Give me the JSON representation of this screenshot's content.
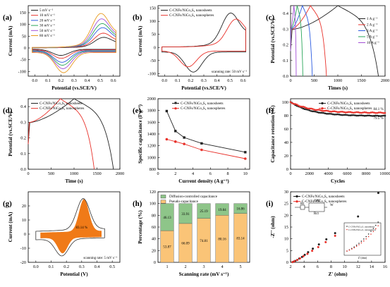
{
  "chart_data": [
    {
      "panel": "(a)",
      "type": "line",
      "xlabel": "Potential (vs.SCE/V)",
      "ylabel": "Current (mA)",
      "xlim": [
        -0.05,
        0.65
      ],
      "ylim": [
        -120,
        180
      ],
      "xticks": [
        "0.0",
        "0.1",
        "0.2",
        "0.3",
        "0.4",
        "0.5",
        "0.6"
      ],
      "yticks": [
        "-100",
        "-50",
        "0",
        "50",
        "100",
        "150"
      ],
      "legend": "top-left",
      "series": [
        {
          "name": "5 mV s⁻¹",
          "color": "#222222",
          "scale": 0.3
        },
        {
          "name": "10 mV s⁻¹",
          "color": "#e8312a",
          "scale": 0.42
        },
        {
          "name": "20 mV s⁻¹",
          "color": "#2b5be0",
          "scale": 0.58
        },
        {
          "name": "30 mV s⁻¹",
          "color": "#2aa65a",
          "scale": 0.7
        },
        {
          "name": "50 mV s⁻¹",
          "color": "#a34fd6",
          "scale": 0.84
        },
        {
          "name": "80 mV s⁻¹",
          "color": "#e89a1e",
          "scale": 1.0
        }
      ]
    },
    {
      "panel": "(b)",
      "type": "line",
      "xlabel": "Potential (vs.SCE/V)",
      "ylabel": "Current (mA)",
      "xlim": [
        -0.05,
        0.65
      ],
      "ylim": [
        -110,
        160
      ],
      "xticks": [
        "0.0",
        "0.1",
        "0.2",
        "0.3",
        "0.4",
        "0.5",
        "0.6"
      ],
      "yticks": [
        "-100",
        "-50",
        "0",
        "50",
        "100",
        "150"
      ],
      "annotation": "scanning rate: 50 mV s⁻¹",
      "legend": "top-left",
      "series": [
        {
          "name": "C-CNFs/NiCo₂S₄ nanosheets",
          "color": "#222222"
        },
        {
          "name": "C-CNFs/NiCo₂S₄ nanospheres",
          "color": "#e8312a"
        }
      ]
    },
    {
      "panel": "(c)",
      "type": "line",
      "xlabel": "Times (s)",
      "ylabel": "Potential (vs.SCE/V)",
      "xlim": [
        0,
        2000
      ],
      "ylim": [
        0,
        0.45
      ],
      "xticks": [
        "0",
        "500",
        "1000",
        "1500",
        "2000"
      ],
      "yticks": [
        "0.0",
        "0.1",
        "0.2",
        "0.3",
        "0.4"
      ],
      "legend": "right",
      "series": [
        {
          "name": "1  A g⁻¹",
          "color": "#222222",
          "tc": 1000,
          "td": 1860
        },
        {
          "name": "2  A g⁻¹",
          "color": "#e8312a",
          "tc": 420,
          "td": 760
        },
        {
          "name": "3  A g⁻¹",
          "color": "#2b5be0",
          "tc": 250,
          "td": 460
        },
        {
          "name": "5  A g⁻¹",
          "color": "#2aa65a",
          "tc": 140,
          "td": 260
        },
        {
          "name": "10  A g⁻¹",
          "color": "#a34fd6",
          "tc": 70,
          "td": 120
        }
      ]
    },
    {
      "panel": "(d)",
      "type": "line",
      "xlabel": "Time (s)",
      "ylabel": "Potential (vs.SCE/V)",
      "xlim": [
        0,
        2000
      ],
      "ylim": [
        0,
        0.45
      ],
      "xticks": [
        "0",
        "500",
        "1000",
        "1500",
        "2000"
      ],
      "yticks": [
        "0.0",
        "0.1",
        "0.2",
        "0.3",
        "0.4"
      ],
      "legend": "top-left",
      "series": [
        {
          "name": "C-CNFs/NiCo₂S₄ nanosheets",
          "color": "#222222",
          "tc": 1000,
          "td": 1860
        },
        {
          "name": "C-CNFs/NiCo₂S₄ nanospheres",
          "color": "#e8312a",
          "tc": 700,
          "td": 1440
        }
      ]
    },
    {
      "panel": "(e)",
      "type": "line",
      "xlabel": "Current density (A g⁻¹)",
      "ylabel": "Specific capacitance (F g⁻¹)",
      "xlim": [
        0,
        10.5
      ],
      "ylim": [
        800,
        2000
      ],
      "xticks": [
        "0",
        "2",
        "4",
        "6",
        "8",
        "10"
      ],
      "yticks": [
        "800",
        "1000",
        "1200",
        "1400",
        "1600",
        "1800",
        "2000"
      ],
      "legend": "top-right",
      "x": [
        1,
        2,
        3,
        5,
        10
      ],
      "series": [
        {
          "name": "C-CNFs/NiCo₂S₄ nanosheets",
          "color": "#222222",
          "marker": "square",
          "values": [
            1790,
            1450,
            1340,
            1240,
            1090
          ]
        },
        {
          "name": "C-CNFs/NiCo₂S₄ nanospheres",
          "color": "#e8312a",
          "marker": "circle",
          "values": [
            1310,
            1270,
            1230,
            1130,
            980
          ]
        }
      ]
    },
    {
      "panel": "(f)",
      "type": "line",
      "xlabel": "Cycles",
      "ylabel": "Capacitance retention (%)",
      "xlim": [
        0,
        10000
      ],
      "ylim": [
        0,
        105
      ],
      "xticks": [
        "0",
        "2000",
        "4000",
        "6000",
        "8000",
        "10000"
      ],
      "yticks": [
        "0",
        "20",
        "40",
        "60",
        "80",
        "100"
      ],
      "legend": "top-right",
      "annotations": [
        "84.1 %",
        "79.5 %"
      ],
      "series": [
        {
          "name": "C-CNFs/NiCo₂S₄ nanosheets",
          "color": "#222222",
          "final": 79.5
        },
        {
          "name": "C-CNFs/NiCo₂S₄ nanospheres",
          "color": "#e8312a",
          "final": 84.1
        }
      ]
    },
    {
      "panel": "(g)",
      "type": "area",
      "xlabel": "Potential (V)",
      "ylabel": "Current (mA)",
      "xlim": [
        -0.05,
        0.55
      ],
      "ylim": [
        -20,
        30
      ],
      "xticks": [
        "0.0",
        "0.1",
        "0.2",
        "0.3",
        "0.4",
        "0.5"
      ],
      "yticks": [
        "-20",
        "-10",
        "0",
        "10",
        "20"
      ],
      "annotations": [
        "83.14 %",
        "scanning rate: 5 mV s⁻¹"
      ],
      "colors": {
        "fill": "#f07a18",
        "outline": "#333333"
      }
    },
    {
      "panel": "(h)",
      "type": "bar",
      "xlabel": "Scanning rate (mV s⁻¹)",
      "ylabel": "Percentage (%)",
      "categories": [
        "1",
        "2",
        "3",
        "4",
        "5"
      ],
      "ylim": [
        0,
        120
      ],
      "yticks": [
        "0",
        "20",
        "40",
        "60",
        "80",
        "100",
        "120"
      ],
      "legend": "top-left",
      "series": [
        {
          "name": "Pseudo-capacitance",
          "color": "#fac477",
          "values": [
            53.87,
            66.09,
            74.81,
            80.16,
            83.14
          ],
          "labels": [
            "53.87",
            "66.09",
            "74.81",
            "80.16",
            "83.14"
          ]
        },
        {
          "name": "Diffusion-controlled capacitance",
          "color": "#8ec589",
          "values": [
            46.13,
            33.91,
            25.19,
            19.84,
            16.86
          ],
          "labels": [
            "46.13",
            "33.91",
            "25.19",
            "19.84",
            "16.86"
          ]
        }
      ]
    },
    {
      "panel": "(i)",
      "type": "scatter",
      "xlabel": "Z' (ohm)",
      "ylabel": "-Z'' (ohm)",
      "xlim": [
        2,
        16
      ],
      "ylim": [
        0,
        30
      ],
      "xticks": [
        "2",
        "4",
        "6",
        "8",
        "10",
        "12",
        "14",
        "16"
      ],
      "yticks": [
        "0",
        "5",
        "10",
        "15",
        "20",
        "25",
        "30"
      ],
      "legend": "top-left",
      "inset_legend": [
        "C-CNFs/NiCo₂S₄ nanosheets",
        "C-CNFs/NiCo₂S₄ nanospheres"
      ],
      "inset_xlabel": "Z' (ohm)",
      "circuit_labels": [
        "Rs",
        "CPE",
        "Rct",
        "W"
      ],
      "series": [
        {
          "name": "C-CNFs/NiCo₂S₄ nanosheets",
          "color": "#222222",
          "x": [
            2.3,
            2.5,
            2.7,
            3.0,
            3.3,
            3.7,
            4.1,
            4.6,
            5.3,
            6.2,
            7.3,
            8.6,
            10.1,
            12.0,
            15.0
          ],
          "y": [
            0.1,
            0.3,
            0.6,
            1.0,
            1.6,
            2.3,
            3.2,
            4.3,
            5.8,
            7.6,
            9.8,
            12.4,
            15.5,
            19.5,
            29.5
          ]
        },
        {
          "name": "C-CNFs/NiCo₂S₄ nanospheres",
          "color": "#e8312a",
          "x": [
            2.3,
            2.6,
            3.0,
            3.4,
            3.9,
            4.5,
            5.2,
            6.1,
            7.2,
            8.6,
            10.1
          ],
          "y": [
            0.1,
            0.5,
            1.0,
            1.7,
            2.6,
            3.6,
            4.9,
            6.5,
            8.6,
            11.3,
            14.8
          ]
        }
      ]
    }
  ]
}
